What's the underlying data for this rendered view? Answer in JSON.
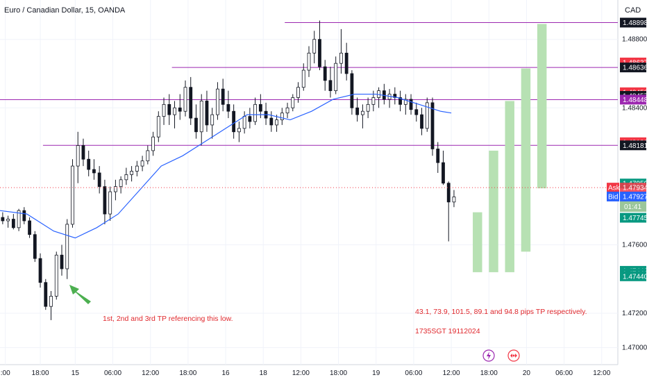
{
  "header": {
    "title": "Euro / Canadian Dollar, 15, OANDA",
    "currency": "CAD"
  },
  "colors": {
    "up": "#089981",
    "down": "#f23645",
    "candle_body": "#131722",
    "ema": "#2962ff",
    "hline": "#9c27b0",
    "tp_box": "#b7e1b3",
    "tag_green": "#089981",
    "tag_red": "#f23645",
    "tag_dark": "#131722",
    "tag_purple": "#9c27b0",
    "tag_blue": "#2962ff",
    "note": "#e0282d",
    "arrow": "#4caf50"
  },
  "chart_data": {
    "type": "candlestick",
    "ylim": [
      1.469,
      1.4903
    ],
    "xlim": [
      0,
      115
    ],
    "y_ticks": [
      "1.47000",
      "1.47200",
      "1.47600",
      "1.48400",
      "1.48800"
    ],
    "x_ticks": [
      {
        "label": ":00",
        "x": 1
      },
      {
        "label": "18:00",
        "x": 7.5
      },
      {
        "label": "15",
        "x": 14
      },
      {
        "label": "06:00",
        "x": 21
      },
      {
        "label": "12:00",
        "x": 28
      },
      {
        "label": "18:00",
        "x": 35
      },
      {
        "label": "16",
        "x": 42
      },
      {
        "label": "18",
        "x": 49
      },
      {
        "label": "12:00",
        "x": 56
      },
      {
        "label": "18:00",
        "x": 63
      },
      {
        "label": "19",
        "x": 70
      },
      {
        "label": "06:00",
        "x": 77
      },
      {
        "label": "12:00",
        "x": 84
      },
      {
        "label": "18:00",
        "x": 91
      },
      {
        "label": "20",
        "x": 98
      },
      {
        "label": "06:00",
        "x": 105
      },
      {
        "label": "12:00",
        "x": 112
      }
    ],
    "candles": [
      [
        1.4776,
        1.4779,
        1.4772,
        1.4774
      ],
      [
        1.4774,
        1.4777,
        1.477,
        1.4775
      ],
      [
        1.4775,
        1.4778,
        1.4769,
        1.477
      ],
      [
        1.477,
        1.4781,
        1.4768,
        1.478
      ],
      [
        1.478,
        1.4782,
        1.4772,
        1.4774
      ],
      [
        1.4774,
        1.4776,
        1.4764,
        1.4766
      ],
      [
        1.4766,
        1.4768,
        1.475,
        1.4752
      ],
      [
        1.4752,
        1.4755,
        1.4735,
        1.4738
      ],
      [
        1.4738,
        1.474,
        1.4722,
        1.4724
      ],
      [
        1.4724,
        1.4733,
        1.4716,
        1.473
      ],
      [
        1.473,
        1.4756,
        1.4728,
        1.4754
      ],
      [
        1.4754,
        1.476,
        1.4742,
        1.4746
      ],
      [
        1.4746,
        1.4775,
        1.474,
        1.4772
      ],
      [
        1.4772,
        1.481,
        1.477,
        1.4806
      ],
      [
        1.4806,
        1.4826,
        1.4796,
        1.4818
      ],
      [
        1.4818,
        1.4822,
        1.4806,
        1.481
      ],
      [
        1.481,
        1.4815,
        1.48,
        1.4804
      ],
      [
        1.4804,
        1.481,
        1.4798,
        1.4802
      ],
      [
        1.4802,
        1.4806,
        1.479,
        1.4794
      ],
      [
        1.4794,
        1.4798,
        1.4772,
        1.4778
      ],
      [
        1.4778,
        1.4794,
        1.4774,
        1.4791
      ],
      [
        1.4791,
        1.4798,
        1.4786,
        1.4794
      ],
      [
        1.4794,
        1.48,
        1.479,
        1.4798
      ],
      [
        1.4798,
        1.4805,
        1.4795,
        1.4801
      ],
      [
        1.4801,
        1.4806,
        1.4797,
        1.4803
      ],
      [
        1.4803,
        1.4809,
        1.48,
        1.4806
      ],
      [
        1.4806,
        1.4812,
        1.4803,
        1.4809
      ],
      [
        1.4809,
        1.4818,
        1.4807,
        1.4815
      ],
      [
        1.4815,
        1.4826,
        1.4812,
        1.4823
      ],
      [
        1.4823,
        1.4838,
        1.482,
        1.4835
      ],
      [
        1.4835,
        1.4846,
        1.483,
        1.4842
      ],
      [
        1.4842,
        1.4848,
        1.483,
        1.4836
      ],
      [
        1.4836,
        1.4844,
        1.4828,
        1.484
      ],
      [
        1.484,
        1.4848,
        1.4833,
        1.4838
      ],
      [
        1.4838,
        1.4856,
        1.4835,
        1.4852
      ],
      [
        1.4852,
        1.4858,
        1.483,
        1.4834
      ],
      [
        1.4834,
        1.4842,
        1.4822,
        1.4826
      ],
      [
        1.4826,
        1.4848,
        1.4818,
        1.4844
      ],
      [
        1.4844,
        1.485,
        1.4826,
        1.483
      ],
      [
        1.483,
        1.484,
        1.4822,
        1.4836
      ],
      [
        1.4836,
        1.4855,
        1.4833,
        1.4851
      ],
      [
        1.4851,
        1.4857,
        1.4838,
        1.4842
      ],
      [
        1.4842,
        1.485,
        1.4834,
        1.4838
      ],
      [
        1.4838,
        1.4842,
        1.4822,
        1.4826
      ],
      [
        1.4826,
        1.4832,
        1.482,
        1.4828
      ],
      [
        1.4828,
        1.4838,
        1.4825,
        1.4835
      ],
      [
        1.4835,
        1.484,
        1.4828,
        1.4832
      ],
      [
        1.4832,
        1.4846,
        1.483,
        1.4842
      ],
      [
        1.4842,
        1.4848,
        1.4834,
        1.4838
      ],
      [
        1.4838,
        1.4843,
        1.483,
        1.4834
      ],
      [
        1.4834,
        1.4838,
        1.4826,
        1.483
      ],
      [
        1.483,
        1.4836,
        1.4826,
        1.4833
      ],
      [
        1.4833,
        1.484,
        1.483,
        1.4837
      ],
      [
        1.4837,
        1.4843,
        1.4834,
        1.484
      ],
      [
        1.484,
        1.4848,
        1.4838,
        1.4846
      ],
      [
        1.4846,
        1.4855,
        1.4843,
        1.4852
      ],
      [
        1.4852,
        1.4866,
        1.485,
        1.4862
      ],
      [
        1.4862,
        1.4876,
        1.4858,
        1.4872
      ],
      [
        1.4872,
        1.4885,
        1.4866,
        1.488
      ],
      [
        1.488,
        1.4891,
        1.4862,
        1.4864
      ],
      [
        1.4864,
        1.4868,
        1.485,
        1.4856
      ],
      [
        1.4856,
        1.4864,
        1.4846,
        1.485
      ],
      [
        1.485,
        1.487,
        1.4848,
        1.4866
      ],
      [
        1.4866,
        1.4886,
        1.486,
        1.4872
      ],
      [
        1.4872,
        1.4878,
        1.4856,
        1.486
      ],
      [
        1.486,
        1.4862,
        1.4836,
        1.484
      ],
      [
        1.484,
        1.4846,
        1.4832,
        1.4836
      ],
      [
        1.4836,
        1.4842,
        1.4828,
        1.4838
      ],
      [
        1.4838,
        1.4846,
        1.4834,
        1.4842
      ],
      [
        1.4842,
        1.485,
        1.4838,
        1.4846
      ],
      [
        1.4846,
        1.4852,
        1.484,
        1.485
      ],
      [
        1.485,
        1.4854,
        1.4842,
        1.4845
      ],
      [
        1.4845,
        1.4851,
        1.484,
        1.4848
      ],
      [
        1.4848,
        1.4852,
        1.4842,
        1.4846
      ],
      [
        1.4846,
        1.485,
        1.4838,
        1.4842
      ],
      [
        1.4842,
        1.4848,
        1.4836,
        1.4845
      ],
      [
        1.4845,
        1.4848,
        1.4836,
        1.4839
      ],
      [
        1.4839,
        1.4843,
        1.4832,
        1.4836
      ],
      [
        1.4836,
        1.484,
        1.4824,
        1.4828
      ],
      [
        1.4828,
        1.4846,
        1.4826,
        1.4843
      ],
      [
        1.4843,
        1.4846,
        1.4812,
        1.4816
      ],
      [
        1.4816,
        1.482,
        1.4802,
        1.4808
      ],
      [
        1.4808,
        1.4815,
        1.4795,
        1.4796
      ],
      [
        1.4796,
        1.4797,
        1.4762,
        1.4785
      ],
      [
        1.4785,
        1.4792,
        1.4782,
        1.4788
      ]
    ],
    "ema": [
      [
        0,
        1.478
      ],
      [
        5,
        1.4778
      ],
      [
        10,
        1.4768
      ],
      [
        14,
        1.4764
      ],
      [
        18,
        1.477
      ],
      [
        22,
        1.4778
      ],
      [
        26,
        1.4792
      ],
      [
        30,
        1.4806
      ],
      [
        34,
        1.4812
      ],
      [
        38,
        1.482
      ],
      [
        42,
        1.4828
      ],
      [
        46,
        1.4836
      ],
      [
        50,
        1.4836
      ],
      [
        54,
        1.4833
      ],
      [
        58,
        1.4838
      ],
      [
        62,
        1.4845
      ],
      [
        66,
        1.4848
      ],
      [
        70,
        1.4848
      ],
      [
        74,
        1.4846
      ],
      [
        78,
        1.4842
      ],
      [
        82,
        1.4838
      ],
      [
        84,
        1.4837
      ]
    ],
    "hlines": [
      {
        "x0": 53,
        "y": 1.48898
      },
      {
        "x0": 32,
        "y": 1.48636
      },
      {
        "x0": 0,
        "y": 1.48448
      },
      {
        "x0": 8,
        "y": 1.48181
      }
    ],
    "tp_boxes": [
      {
        "x": 88,
        "top": 1.4779,
        "bottom": 1.4744
      },
      {
        "x": 91,
        "top": 1.4815,
        "bottom": 1.4744
      },
      {
        "x": 94,
        "top": 1.4844,
        "bottom": 1.4744
      },
      {
        "x": 97,
        "top": 1.4863,
        "bottom": 1.4756
      },
      {
        "x": 100,
        "top": 1.4889,
        "bottom": 1.4793
      }
    ],
    "price_tags": [
      {
        "text": "1.48898",
        "y": 1.48898,
        "color": "tag_dark"
      },
      {
        "text": "1.48637",
        "y": 1.48665,
        "color": "tag_red"
      },
      {
        "text": "1.48636",
        "y": 1.48636,
        "color": "tag_dark"
      },
      {
        "text": "1.48458",
        "y": 1.48491,
        "color": "tag_red"
      },
      {
        "text": "1.48457",
        "y": 1.4847,
        "color": "tag_dark"
      },
      {
        "text": "1.48448",
        "y": 1.48448,
        "color": "tag_purple"
      },
      {
        "text": "1.48182",
        "y": 1.48199,
        "color": "tag_red"
      },
      {
        "text": "1.48181",
        "y": 1.48181,
        "color": "tag_dark"
      },
      {
        "text": "1.47950",
        "y": 1.47958,
        "color": "tag_green"
      },
      {
        "text": "1.47872",
        "y": 1.47878,
        "color": "tag_red"
      },
      {
        "text": "1.47871",
        "y": 1.4786,
        "color": "tag_dark"
      },
      {
        "text": "1.47745",
        "y": 1.47758,
        "color": "tag_green"
      },
      {
        "text": "1.47442",
        "y": 1.47448,
        "color": "tag_green"
      },
      {
        "text": "1.47442",
        "y": 1.47432,
        "color": "tag_green"
      },
      {
        "text": "1.47440",
        "y": 1.47416,
        "color": "tag_green"
      }
    ],
    "ask": {
      "label": "Ask",
      "value": "1.47934",
      "y": 1.47934
    },
    "last": {
      "value": "1.47934",
      "countdown": "01:41",
      "y": 1.47935
    },
    "bid": {
      "label": "Bid",
      "value": "1.47927",
      "y": 1.47882
    }
  },
  "annotations": {
    "low_note": "1st, 2nd and 3rd TP referencing this low.",
    "tp_note": "43.1, 73.9, 101.5, 89.1 and 94.8 pips TP respectively.",
    "time_note": "1735SGT 19112024"
  }
}
